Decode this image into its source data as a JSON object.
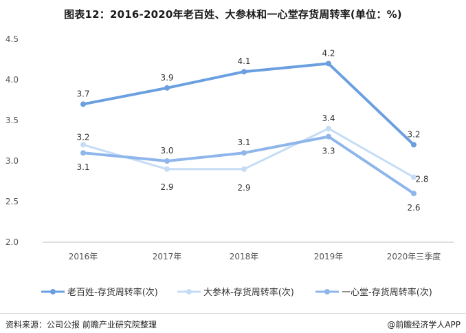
{
  "chart_data": {
    "type": "line",
    "title": "图表12：2016-2020年老百姓、大参林和一心堂存货周转率(单位：%)",
    "categories": [
      "2016年",
      "2017年",
      "2018年",
      "2019年",
      "2020年三季度"
    ],
    "ylim": [
      2.0,
      4.5
    ],
    "yticks": [
      "2.0",
      "2.5",
      "3.0",
      "3.5",
      "4.0",
      "4.5"
    ],
    "grid": false,
    "legend_position": "bottom",
    "series": [
      {
        "name": "老百姓-存货周转率(次)",
        "values": [
          3.7,
          3.9,
          4.1,
          4.2,
          3.2
        ],
        "labels": [
          "3.7",
          "3.9",
          "4.1",
          "4.2",
          "3.2"
        ],
        "color": "#6a9fe0"
      },
      {
        "name": "大参林-存货周转率(次)",
        "values": [
          3.2,
          2.9,
          2.9,
          3.4,
          2.8
        ],
        "labels": [
          "3.2",
          "2.9",
          "2.9",
          "3.4",
          "2.8"
        ],
        "color": "#c5dcf5"
      },
      {
        "name": "一心堂-存货周转率(次)",
        "values": [
          3.1,
          3.0,
          3.1,
          3.3,
          2.6
        ],
        "labels": [
          "3.1",
          "3.0",
          "3.1",
          "3.3",
          "2.6"
        ],
        "color": "#8fb6ea"
      }
    ]
  },
  "footer": {
    "source": "资料来源：公司公报 前瞻产业研究院整理",
    "brand": "@前瞻经济学人APP"
  }
}
